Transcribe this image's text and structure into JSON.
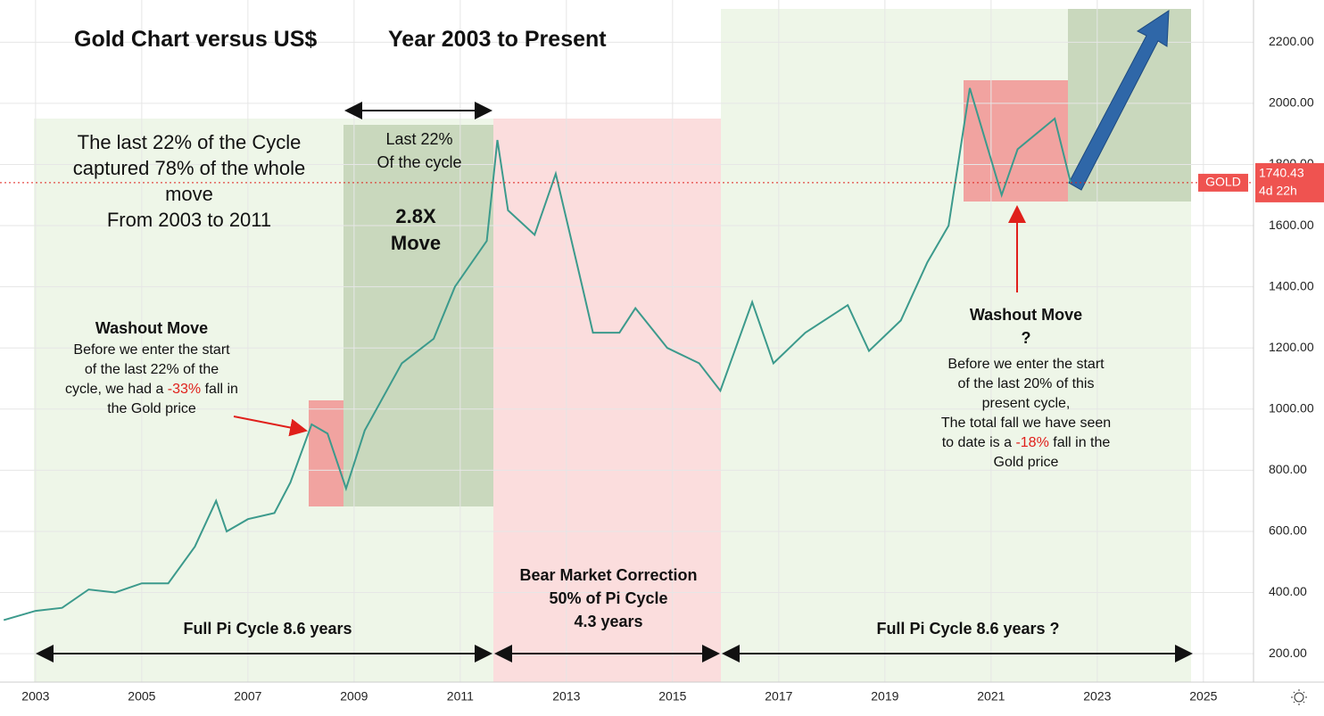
{
  "chart_data": {
    "type": "line",
    "title": "Gold Chart versus US$",
    "subtitle": "Year 2003 to Present",
    "x": [
      2002.4,
      2003,
      2003.5,
      2004,
      2004.5,
      2005,
      2005.5,
      2006,
      2006.4,
      2006.6,
      2007,
      2007.5,
      2007.8,
      2008.2,
      2008.5,
      2008.85,
      2009.2,
      2009.9,
      2010.5,
      2010.9,
      2011.5,
      2011.7,
      2011.9,
      2012.4,
      2012.8,
      2013.3,
      2013.5,
      2014,
      2014.3,
      2014.9,
      2015.5,
      2015.9,
      2016.5,
      2016.9,
      2017.5,
      2018.3,
      2018.7,
      2019.3,
      2019.8,
      2020.2,
      2020.6,
      2021.2,
      2021.5,
      2022.2,
      2022.5
    ],
    "series": [
      {
        "name": "GOLD",
        "color": "#3c9a8c",
        "values": [
          310,
          340,
          350,
          410,
          400,
          430,
          430,
          550,
          700,
          600,
          640,
          660,
          760,
          950,
          920,
          740,
          930,
          1150,
          1230,
          1400,
          1550,
          1880,
          1650,
          1570,
          1770,
          1400,
          1250,
          1250,
          1330,
          1200,
          1150,
          1060,
          1350,
          1150,
          1250,
          1340,
          1190,
          1290,
          1480,
          1600,
          2050,
          1700,
          1850,
          1950,
          1740
        ]
      }
    ],
    "xlim": [
      2002.33,
      2025.86
    ],
    "xticks": [
      2003,
      2005,
      2007,
      2009,
      2011,
      2013,
      2015,
      2017,
      2019,
      2021,
      2023,
      2025
    ],
    "ylim": [
      107,
      2338
    ],
    "yticks": [
      {
        "value": 200,
        "label": "200.00"
      },
      {
        "value": 400,
        "label": "400.00"
      },
      {
        "value": 600,
        "label": "600.00"
      },
      {
        "value": 800,
        "label": "800.00"
      },
      {
        "value": 1000,
        "label": "1000.00"
      },
      {
        "value": 1200,
        "label": "1200.00"
      },
      {
        "value": 1400,
        "label": "1400.00"
      },
      {
        "value": 1600,
        "label": "1600.00"
      },
      {
        "value": 1800,
        "label": "1800.00"
      },
      {
        "value": 2000,
        "label": "2000.00"
      },
      {
        "value": 2200,
        "label": "2200.00"
      }
    ],
    "price_tag": {
      "name": "GOLD",
      "value": 1740.43,
      "label": "1740.43",
      "countdown": "4d 22h"
    },
    "annotations": [
      [
        "The last 22% of the Cycle\ncaptured 78% of the whole\nmove\nFrom 2003 to 2011"
      ],
      [
        "Last 22%\nOf the cycle"
      ],
      [
        "2.8X\nMove"
      ],
      [
        "Washout Move"
      ],
      [
        "Before we enter the start\nof the last 22% of the\ncycle, we had a ",
        "-33%",
        " fall in\nthe Gold price"
      ],
      [
        "Washout Move\n?"
      ],
      [
        "Before we enter the start\nof the last 20% of this\npresent cycle,\nThe total fall we have seen\nto date is a ",
        "-18%",
        " fall in the\nGold price"
      ],
      [
        "Bear Market Correction\n50% of Pi Cycle\n4.3 years"
      ],
      [
        "Full Pi Cycle 8.6 years"
      ],
      [
        "Full Pi Cycle 8.6 years ?"
      ]
    ]
  }
}
